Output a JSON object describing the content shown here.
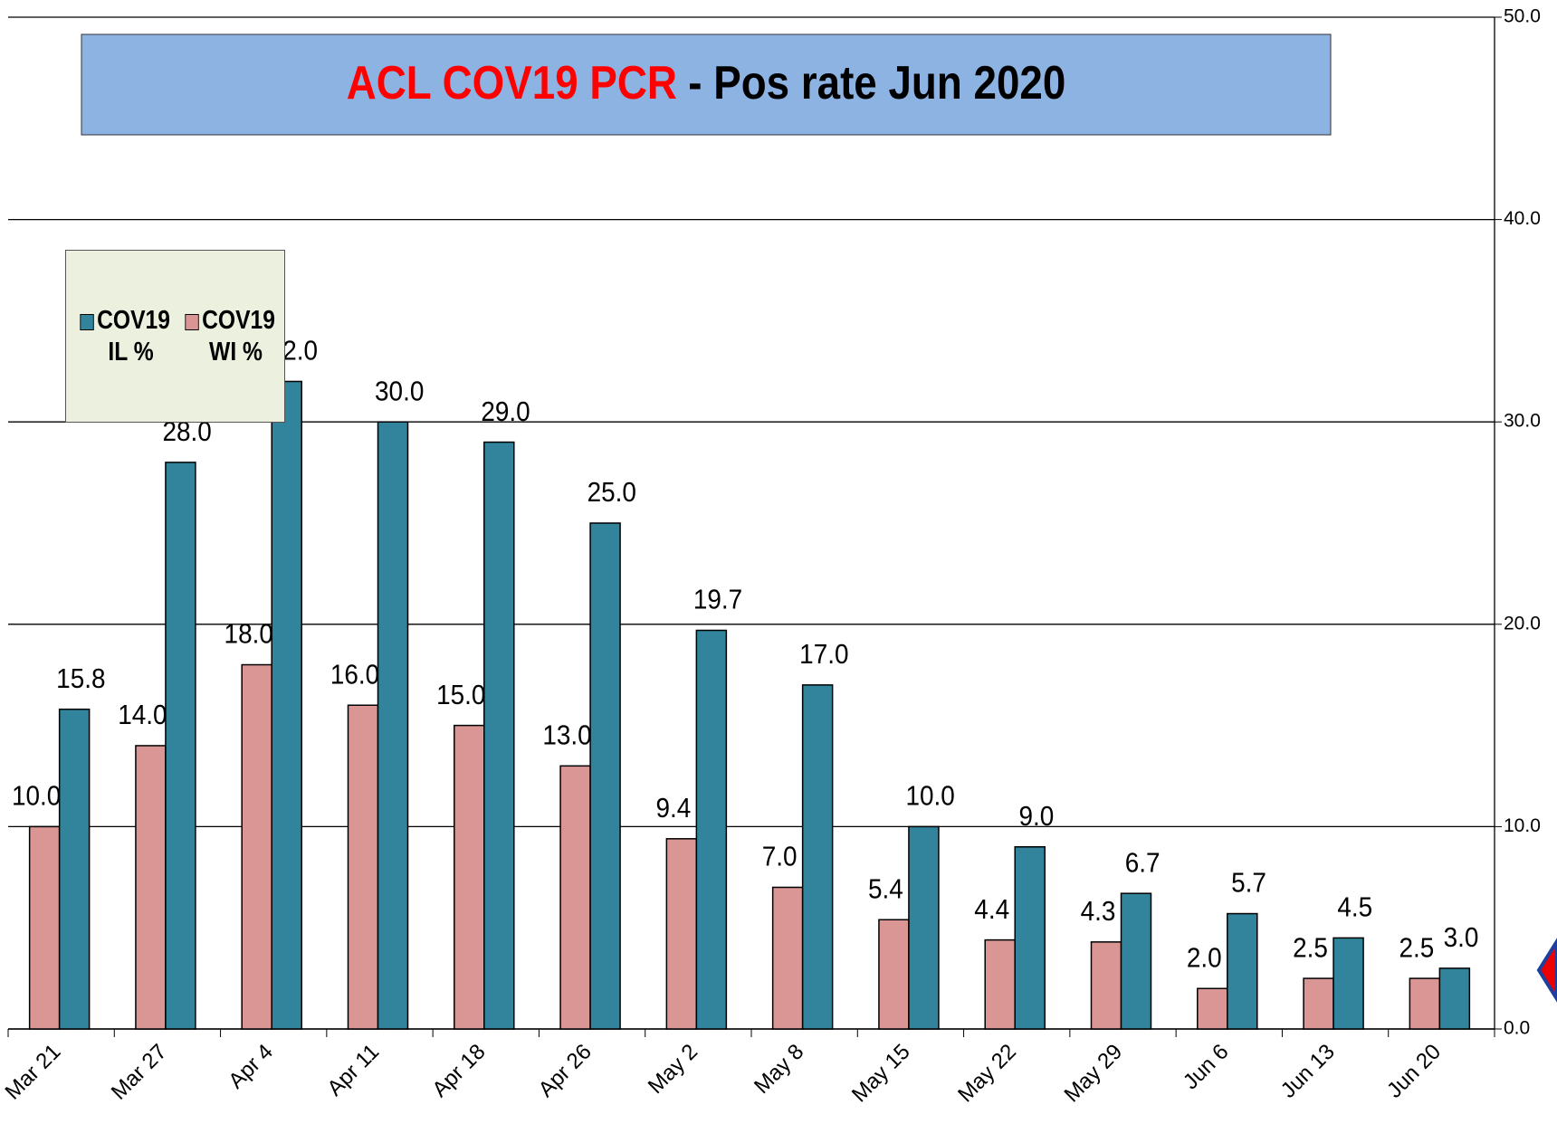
{
  "chart_data": {
    "type": "bar",
    "title": [
      "ACL COV19 PCR",
      "-  Pos rate Jun 2020"
    ],
    "categories": [
      "Mar 21",
      "Mar 27",
      "Apr 4",
      "Apr 11",
      "Apr 18",
      "Apr 26",
      "May 2",
      "May 8",
      "May 15",
      "May 22",
      "May 29",
      "Jun 6",
      "Jun 13",
      "Jun 20"
    ],
    "series": [
      {
        "name": "COV19 WI %",
        "color": "#d99694",
        "values": [
          10,
          14,
          18,
          16,
          15,
          13,
          9.4,
          7,
          5.4,
          4.4,
          4.3,
          2,
          2.5,
          2.5
        ],
        "value_labels": [
          "10.0",
          "14.0",
          "18.0",
          "16.0",
          "15.0",
          "13.0",
          "9.4",
          "7.0",
          "5.4",
          "4.4",
          "4.3",
          "2.0",
          "2.5",
          "2.5"
        ]
      },
      {
        "name": "COV19 IL %",
        "color": "#31849b",
        "values": [
          15.8,
          28,
          32,
          30,
          29,
          25,
          19.7,
          17,
          10,
          9,
          6.7,
          5.7,
          4.5,
          3
        ],
        "value_labels": [
          "15.8",
          "28.0",
          "32.0",
          "30.0",
          "29.0",
          "25.0",
          "19.7",
          "17.0",
          "10.0",
          "9.0",
          "6.7",
          "5.7",
          "4.5",
          "3.0"
        ]
      }
    ],
    "legend_order": [
      1,
      0
    ],
    "ylim": [
      0,
      50
    ],
    "yticks": [
      {
        "value": 0,
        "label": "0.0"
      },
      {
        "value": 10,
        "label": "10.0"
      },
      {
        "value": 20,
        "label": "20.0"
      },
      {
        "value": 30,
        "label": "30.0"
      },
      {
        "value": 40,
        "label": "40.0"
      },
      {
        "value": 50,
        "label": "50.0"
      }
    ],
    "y_axis_side": "right",
    "grid": true,
    "legend": "upper left"
  }
}
